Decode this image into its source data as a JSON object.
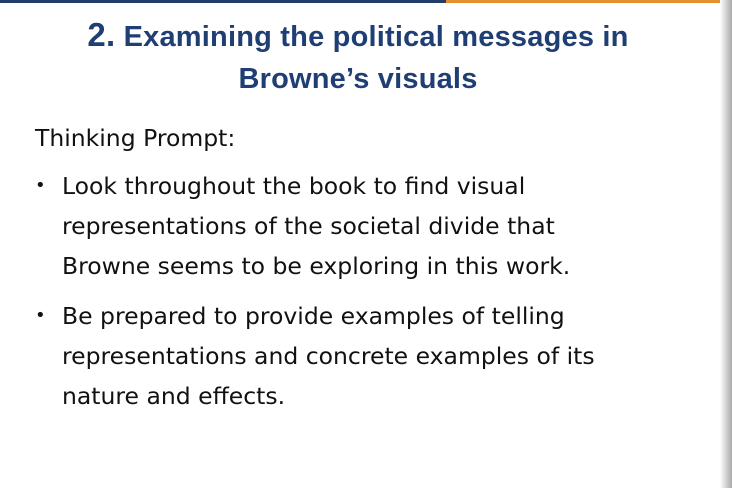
{
  "colors": {
    "title": "#1f3e73",
    "rule_left": "#243c6a",
    "rule_right": "#e3902e"
  },
  "slide": {
    "title_number": "2.",
    "title_line1": "Examining the political messages in",
    "title_line2": "Browne’s visuals",
    "prompt_label": "Thinking Prompt:",
    "bullets": [
      {
        "symbol": "•",
        "lines": [
          "Look throughout the book to find visual",
          "representations of the societal divide that",
          "Browne seems to be exploring in this work."
        ]
      },
      {
        "symbol": "•",
        "lines": [
          "Be prepared to provide examples of telling",
          "representations and concrete examples of its",
          "nature and effects."
        ]
      }
    ]
  }
}
